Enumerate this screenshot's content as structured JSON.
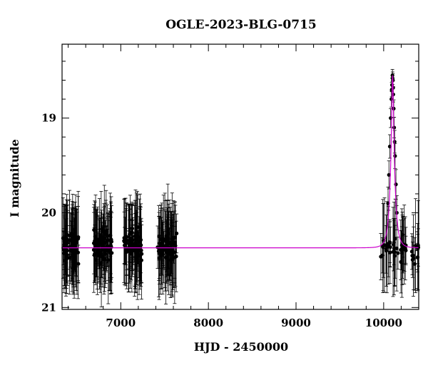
{
  "chart_data": {
    "type": "scatter",
    "title": "OGLE-2023-BLG-0715",
    "xlabel": "HJD - 2450000",
    "ylabel": "I magnitude",
    "xlim": [
      6330,
      10400
    ],
    "ylim": [
      21.02,
      18.22
    ],
    "y_inverted": true,
    "x_ticks": [
      7000,
      8000,
      9000,
      10000
    ],
    "y_ticks": [
      19,
      20,
      21
    ],
    "x_minor_step": 200,
    "y_minor_step": 0.2,
    "grid": false,
    "legend": "none",
    "colors": {
      "points": "#000000",
      "errorbars": "#000000",
      "model": "#cc00cc",
      "frame": "#000000"
    },
    "observing_seasons": [
      {
        "start": 6340,
        "end": 6520,
        "mag_median": 20.35,
        "scatter": 0.25,
        "n": 70
      },
      {
        "start": 6690,
        "end": 6900,
        "mag_median": 20.35,
        "scatter": 0.25,
        "n": 75
      },
      {
        "start": 7030,
        "end": 7240,
        "mag_median": 20.35,
        "scatter": 0.25,
        "n": 75
      },
      {
        "start": 7420,
        "end": 7640,
        "mag_median": 20.35,
        "scatter": 0.25,
        "n": 75
      },
      {
        "start": 9960,
        "end": 10260,
        "mag_median": 20.35,
        "scatter": 0.18,
        "n": 40
      },
      {
        "start": 10320,
        "end": 10400,
        "mag_median": 20.4,
        "scatter": 0.15,
        "n": 12
      }
    ],
    "event_points": [
      {
        "x": 10050,
        "y": 19.9
      },
      {
        "x": 10060,
        "y": 19.6
      },
      {
        "x": 10070,
        "y": 19.3
      },
      {
        "x": 10080,
        "y": 19.0
      },
      {
        "x": 10088,
        "y": 18.8
      },
      {
        "x": 10095,
        "y": 18.65
      },
      {
        "x": 10100,
        "y": 18.55
      },
      {
        "x": 10105,
        "y": 18.6
      },
      {
        "x": 10110,
        "y": 18.75
      },
      {
        "x": 10115,
        "y": 18.9
      },
      {
        "x": 10120,
        "y": 19.1
      },
      {
        "x": 10130,
        "y": 19.4
      },
      {
        "x": 10140,
        "y": 19.7
      },
      {
        "x": 10150,
        "y": 20.0
      },
      {
        "x": 10092,
        "y": 18.7
      },
      {
        "x": 10102,
        "y": 18.58
      },
      {
        "x": 10108,
        "y": 18.68
      },
      {
        "x": 10125,
        "y": 19.25
      }
    ],
    "model": {
      "type": "point-lens",
      "baseline_mag": 20.37,
      "peak_mag": 18.55,
      "t0": 10102,
      "tE": 50
    }
  }
}
